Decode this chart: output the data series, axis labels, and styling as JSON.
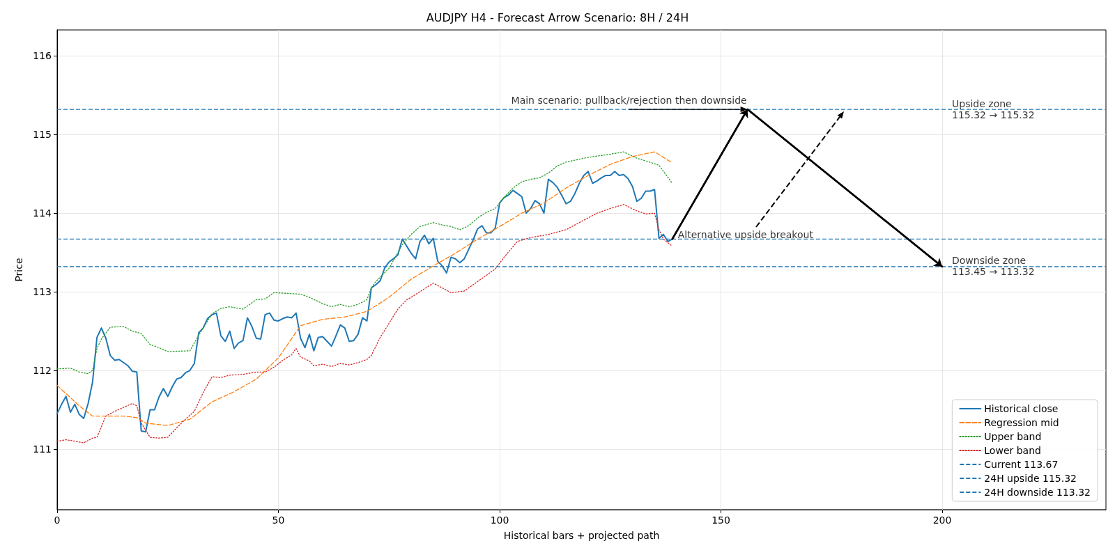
{
  "chart_data": {
    "type": "line",
    "title": "AUDJPY H4 - Forecast Arrow Scenario: 8H / 24H",
    "xlabel": "Historical bars + projected path",
    "ylabel": "Price",
    "xlim": [
      0,
      237
    ],
    "ylim": [
      110.23,
      116.33
    ],
    "xticks": [
      0,
      50,
      100,
      150,
      200
    ],
    "yticks": [
      111,
      112,
      113,
      114,
      115,
      116
    ],
    "grid": true,
    "legend": "bottom right",
    "marker": "none",
    "series": [
      {
        "name": "Historical close",
        "color": "#1f77b4",
        "line_style": "solid",
        "x": [
          0,
          1,
          2,
          3,
          4,
          5,
          6,
          7,
          8,
          9,
          10,
          11,
          12,
          13,
          14,
          15,
          16,
          17,
          18,
          19,
          20,
          21,
          22,
          23,
          24,
          25,
          26,
          27,
          28,
          29,
          30,
          31,
          32,
          33,
          34,
          35,
          36,
          37,
          38,
          39,
          40,
          41,
          42,
          43,
          44,
          45,
          46,
          47,
          48,
          49,
          50,
          51,
          52,
          53,
          54,
          55,
          56,
          57,
          58,
          59,
          60,
          61,
          62,
          63,
          64,
          65,
          66,
          67,
          68,
          69,
          70,
          71,
          72,
          73,
          74,
          75,
          76,
          77,
          78,
          79,
          80,
          81,
          82,
          83,
          84,
          85,
          86,
          87,
          88,
          89,
          90,
          91,
          92,
          93,
          94,
          95,
          96,
          97,
          98,
          99,
          100,
          101,
          102,
          103,
          104,
          105,
          106,
          107,
          108,
          109,
          110,
          111,
          112,
          113,
          114,
          115,
          116,
          117,
          118,
          119,
          120,
          121,
          122,
          123,
          124,
          125,
          126,
          127,
          128,
          129,
          130,
          131,
          132,
          133,
          134,
          135,
          136,
          137,
          138,
          139
        ],
        "values": [
          111.45,
          111.57,
          111.67,
          111.47,
          111.57,
          111.44,
          111.39,
          111.58,
          111.85,
          112.42,
          112.54,
          112.41,
          112.19,
          112.13,
          112.14,
          112.1,
          112.06,
          111.99,
          111.98,
          111.23,
          111.22,
          111.5,
          111.5,
          111.66,
          111.77,
          111.67,
          111.79,
          111.89,
          111.91,
          111.97,
          112.0,
          112.09,
          112.48,
          112.54,
          112.66,
          112.71,
          112.73,
          112.44,
          112.37,
          112.5,
          112.28,
          112.35,
          112.38,
          112.67,
          112.56,
          112.41,
          112.4,
          112.71,
          112.73,
          112.64,
          112.63,
          112.66,
          112.68,
          112.67,
          112.73,
          112.41,
          112.29,
          112.46,
          112.25,
          112.42,
          112.43,
          112.37,
          112.31,
          112.44,
          112.58,
          112.54,
          112.37,
          112.38,
          112.46,
          112.67,
          112.63,
          113.05,
          113.09,
          113.14,
          113.3,
          113.38,
          113.42,
          113.47,
          113.67,
          113.58,
          113.49,
          113.42,
          113.64,
          113.72,
          113.61,
          113.68,
          113.39,
          113.33,
          113.24,
          113.44,
          113.42,
          113.37,
          113.42,
          113.54,
          113.66,
          113.8,
          113.84,
          113.75,
          113.75,
          113.81,
          114.13,
          114.2,
          114.23,
          114.29,
          114.25,
          114.21,
          114.0,
          114.06,
          114.16,
          114.12,
          114.0,
          114.43,
          114.39,
          114.33,
          114.23,
          114.12,
          114.15,
          114.25,
          114.38,
          114.48,
          114.53,
          114.38,
          114.41,
          114.45,
          114.48,
          114.48,
          114.53,
          114.48,
          114.49,
          114.44,
          114.34,
          114.15,
          114.19,
          114.28,
          114.28,
          114.3,
          113.68,
          113.73,
          113.64,
          113.67
        ]
      },
      {
        "name": "Regression mid",
        "color": "#ff7f0e",
        "line_style": "dashed",
        "x": [
          0,
          5,
          8,
          10,
          15,
          18,
          20,
          25,
          30,
          35,
          40,
          45,
          50,
          55,
          60,
          65,
          70,
          75,
          80,
          85,
          90,
          95,
          100,
          105,
          110,
          115,
          120,
          125,
          130,
          135,
          139
        ],
        "values": [
          111.81,
          111.55,
          111.42,
          111.42,
          111.42,
          111.4,
          111.33,
          111.3,
          111.38,
          111.6,
          111.73,
          111.89,
          112.16,
          112.57,
          112.65,
          112.68,
          112.75,
          112.93,
          113.16,
          113.33,
          113.49,
          113.67,
          113.83,
          114.0,
          114.13,
          114.32,
          114.48,
          114.62,
          114.72,
          114.78,
          114.64
        ]
      },
      {
        "name": "Upper band",
        "color": "#2ca02c",
        "line_style": "dotted",
        "x": [
          0,
          3,
          5,
          7,
          8,
          9,
          10,
          12,
          15,
          17,
          19,
          21,
          23,
          25,
          30,
          32,
          35,
          37,
          39,
          42,
          45,
          47,
          49,
          52,
          55,
          57,
          60,
          62,
          64,
          66,
          68,
          70,
          71,
          72,
          75,
          78,
          80,
          82,
          85,
          87,
          89,
          91,
          93,
          95,
          97,
          99,
          101,
          103,
          105,
          107,
          109,
          111,
          113,
          115,
          120,
          125,
          128,
          131,
          136,
          139
        ],
        "values": [
          112.02,
          112.03,
          111.98,
          111.96,
          112.0,
          112.28,
          112.4,
          112.55,
          112.56,
          112.5,
          112.47,
          112.33,
          112.29,
          112.24,
          112.25,
          112.45,
          112.72,
          112.79,
          112.81,
          112.78,
          112.9,
          112.91,
          112.99,
          112.98,
          112.97,
          112.93,
          112.85,
          112.81,
          112.84,
          112.81,
          112.84,
          112.9,
          113.05,
          113.13,
          113.3,
          113.6,
          113.73,
          113.83,
          113.88,
          113.85,
          113.83,
          113.79,
          113.84,
          113.94,
          114.01,
          114.06,
          114.2,
          114.32,
          114.4,
          114.43,
          114.45,
          114.51,
          114.6,
          114.65,
          114.71,
          114.75,
          114.78,
          114.7,
          114.61,
          114.38
        ]
      },
      {
        "name": "Lower band",
        "color": "#d62728",
        "line_style": "dotted",
        "x": [
          0,
          2,
          4,
          6,
          8,
          9,
          11,
          13,
          15,
          17,
          18,
          19,
          21,
          23,
          25,
          27,
          29,
          31,
          33,
          35,
          37,
          39,
          42,
          45,
          47,
          49,
          51,
          53,
          54,
          55,
          57,
          58,
          60,
          62,
          64,
          66,
          68,
          70,
          71,
          73,
          75,
          77,
          79,
          80,
          85,
          89,
          92,
          96,
          99,
          101,
          104,
          107,
          111,
          115,
          119,
          122,
          125,
          128,
          131,
          133,
          135,
          136,
          137,
          139
        ],
        "values": [
          111.1,
          111.12,
          111.1,
          111.08,
          111.14,
          111.15,
          111.42,
          111.48,
          111.53,
          111.58,
          111.55,
          111.33,
          111.15,
          111.14,
          111.15,
          111.27,
          111.38,
          111.48,
          111.72,
          111.92,
          111.91,
          111.94,
          111.95,
          111.98,
          111.98,
          112.04,
          112.13,
          112.2,
          112.28,
          112.17,
          112.12,
          112.06,
          112.08,
          112.05,
          112.09,
          112.07,
          112.1,
          112.14,
          112.19,
          112.42,
          112.6,
          112.78,
          112.9,
          112.93,
          113.11,
          112.99,
          113.01,
          113.17,
          113.29,
          113.44,
          113.64,
          113.69,
          113.73,
          113.79,
          113.91,
          114.0,
          114.06,
          114.11,
          114.03,
          113.99,
          114.0,
          113.79,
          113.67,
          113.58
        ]
      },
      {
        "color": "#000000",
        "line_style": "solid",
        "x": [
          139,
          156,
          200
        ],
        "values": [
          113.67,
          115.32,
          113.32
        ]
      }
    ],
    "ref_lines": [
      {
        "axis": "y",
        "value": 113.67,
        "label": "Current 113.67",
        "color": "#1f77b4",
        "line_style": "dashed"
      },
      {
        "axis": "y",
        "value": 115.32,
        "label": "24H upside 115.32",
        "color": "#1f77b4",
        "line_style": "dashed"
      },
      {
        "axis": "y",
        "value": 113.32,
        "label": "24H downside 113.32",
        "color": "#1f77b4",
        "line_style": "dashed"
      }
    ],
    "annotations": [
      {
        "text": "Main scenario: pullback/rejection then downside",
        "x": 156,
        "y": 115.32
      },
      {
        "text": "Alternative upside breakout",
        "x": 139,
        "y": 113.67
      },
      {
        "text": "Upside zone\n115.32 → 115.32",
        "x": 202.2,
        "y": 115.32
      },
      {
        "text": "Downside zone\n113.45 → 113.32",
        "x": 202.2,
        "y": 113.33
      }
    ]
  }
}
